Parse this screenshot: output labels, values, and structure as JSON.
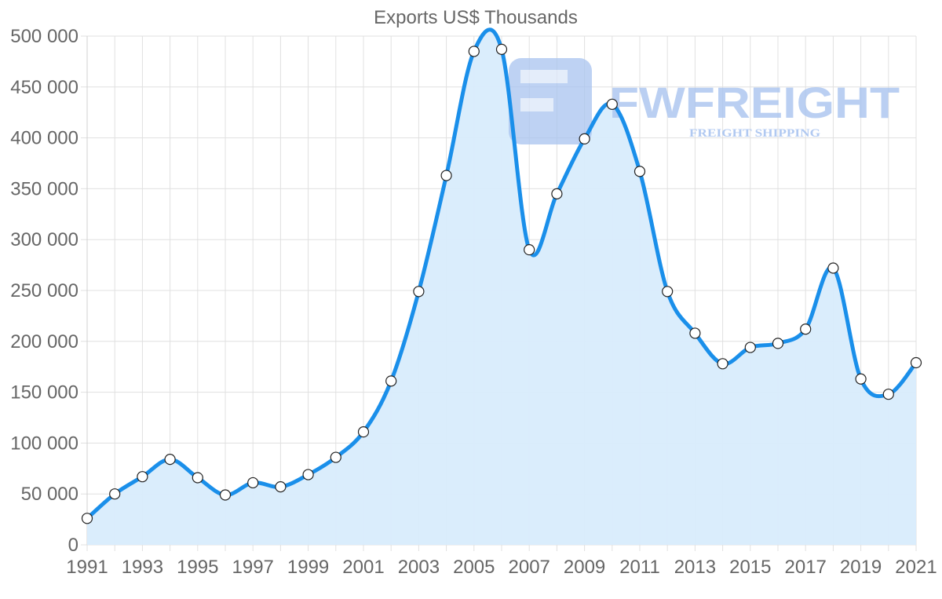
{
  "chart_data": {
    "type": "area",
    "title": "Exports US$ Thousands",
    "xlabel": "",
    "ylabel": "",
    "x": [
      1991,
      1992,
      1993,
      1994,
      1995,
      1996,
      1997,
      1998,
      1999,
      2000,
      2001,
      2002,
      2003,
      2004,
      2005,
      2006,
      2007,
      2008,
      2009,
      2010,
      2011,
      2012,
      2013,
      2014,
      2015,
      2016,
      2017,
      2018,
      2019,
      2020,
      2021
    ],
    "series": [
      {
        "name": "Exports",
        "values": [
          26000,
          50000,
          67000,
          84000,
          66000,
          49000,
          61000,
          57000,
          69000,
          86000,
          111000,
          161000,
          249000,
          363000,
          485000,
          487000,
          290000,
          345000,
          399000,
          433000,
          367000,
          249000,
          208000,
          178000,
          194000,
          198000,
          212000,
          272000,
          163000,
          148000,
          179000
        ]
      }
    ],
    "x_tick_labels": [
      "1991",
      "1993",
      "1995",
      "1997",
      "1999",
      "2001",
      "2003",
      "2005",
      "2007",
      "2009",
      "2011",
      "2013",
      "2015",
      "2017",
      "2019",
      "2021"
    ],
    "y_tick_labels": [
      "0",
      "50 000",
      "100 000",
      "150 000",
      "200 000",
      "250 000",
      "300 000",
      "350 000",
      "400 000",
      "450 000",
      "500 000"
    ],
    "y_ticks": [
      0,
      50000,
      100000,
      150000,
      200000,
      250000,
      300000,
      350000,
      400000,
      450000,
      500000
    ],
    "ylim": [
      0,
      500000
    ],
    "xlim": [
      1991,
      2021
    ],
    "grid": true,
    "legend": "none",
    "colors": {
      "line": "#1a8fea",
      "fill": "#d8ecfc",
      "point_fill": "#ffffff",
      "point_stroke": "#222222",
      "grid": "#e0e0e0",
      "text": "#666666"
    }
  },
  "watermark": {
    "brand": "FWFREIGHT",
    "tagline": "FREIGHT SHIPPING",
    "color": "#a9c4f0"
  }
}
